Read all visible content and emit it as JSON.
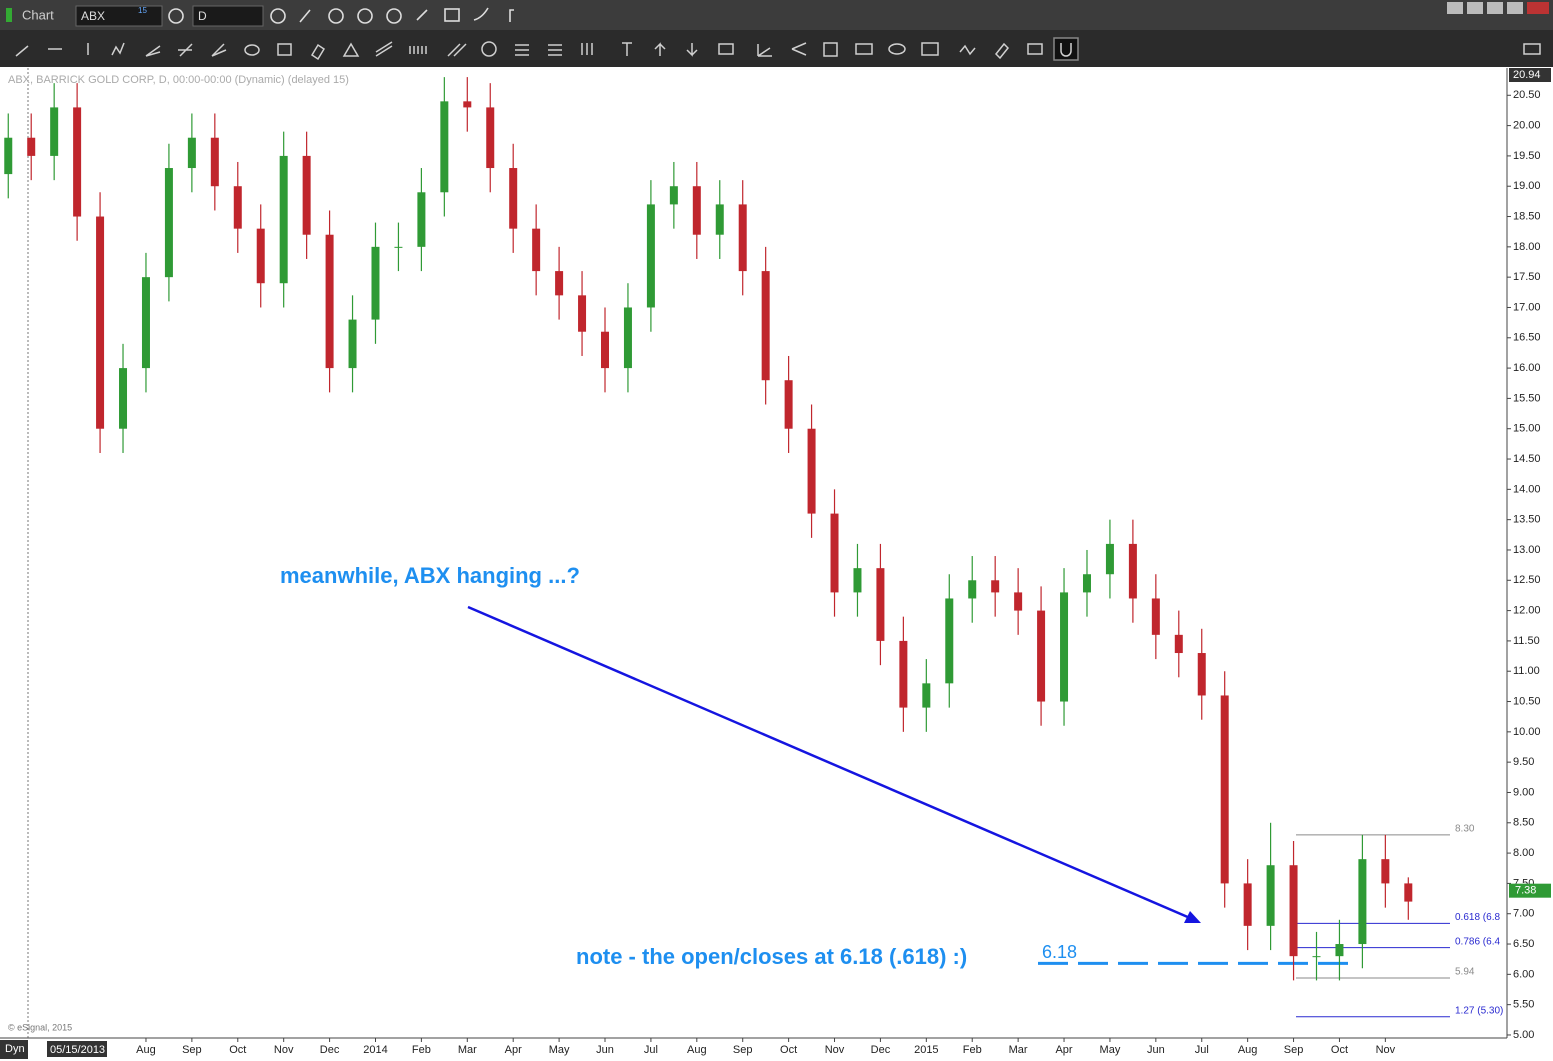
{
  "header": {
    "app_title": "Chart",
    "symbol": "ABX",
    "symbol_badge": "15",
    "interval": "D"
  },
  "chart_data": {
    "type": "candlestick",
    "legend_text": "ABX, BARRICK GOLD CORP, D, 00:00-00:00 (Dynamic) (delayed 15)",
    "x": [
      -2,
      -1.5,
      -1,
      -0.5,
      0,
      0.5,
      1,
      1.5,
      2,
      2.5,
      3,
      3.5,
      4,
      4.5,
      5,
      5.5,
      6,
      6.5,
      7,
      7.5,
      8,
      8.5,
      9,
      9.5,
      10,
      10.5,
      11,
      11.5,
      12,
      12.5,
      13,
      13.5,
      14,
      14.5,
      15,
      15.5,
      16,
      16.5,
      17,
      17.5,
      18,
      18.5,
      19,
      19.5,
      20,
      20.5,
      21,
      21.5,
      22,
      22.5,
      23,
      23.5,
      24,
      24.5,
      25,
      25.5,
      26,
      26.5,
      27,
      27.5,
      28,
      28.5
    ],
    "open": [
      19.2,
      19.8,
      19.5,
      20.3,
      18.5,
      15.0,
      16.0,
      17.5,
      19.3,
      19.8,
      19.0,
      18.3,
      17.4,
      19.5,
      18.2,
      16.0,
      16.8,
      18.0,
      18.0,
      18.9,
      20.4,
      20.3,
      19.3,
      18.3,
      17.6,
      17.2,
      16.6,
      16.0,
      17.0,
      18.7,
      19.0,
      18.2,
      18.7,
      17.6,
      15.8,
      15.0,
      13.6,
      12.3,
      12.7,
      11.5,
      10.4,
      10.8,
      12.2,
      12.5,
      12.3,
      12.0,
      10.5,
      12.3,
      12.6,
      13.1,
      12.2,
      11.6,
      11.3,
      10.6,
      7.5,
      6.8,
      7.8,
      6.3,
      6.3,
      6.5,
      7.9,
      7.5
    ],
    "high": [
      20.2,
      20.2,
      20.7,
      20.7,
      18.9,
      16.4,
      17.9,
      19.7,
      20.2,
      20.2,
      19.4,
      18.7,
      19.9,
      19.9,
      18.6,
      17.2,
      18.4,
      18.4,
      19.3,
      20.8,
      20.8,
      20.7,
      19.7,
      18.7,
      18.0,
      17.6,
      17.0,
      17.4,
      19.1,
      19.4,
      19.4,
      19.1,
      19.1,
      18.0,
      16.2,
      15.4,
      14.0,
      13.1,
      13.1,
      11.9,
      11.2,
      12.6,
      12.9,
      12.9,
      12.7,
      12.4,
      12.7,
      13.0,
      13.5,
      13.5,
      12.6,
      12.0,
      11.7,
      11.0,
      7.9,
      8.5,
      8.2,
      6.7,
      6.9,
      8.3,
      8.3,
      7.6
    ],
    "low": [
      18.8,
      19.1,
      19.1,
      18.1,
      14.6,
      14.6,
      15.6,
      17.1,
      18.9,
      18.6,
      17.9,
      17.0,
      17.0,
      17.8,
      15.6,
      15.6,
      16.4,
      17.6,
      17.6,
      18.5,
      19.9,
      18.9,
      17.9,
      17.2,
      16.8,
      16.2,
      15.6,
      15.6,
      16.6,
      18.3,
      17.8,
      17.8,
      17.2,
      15.4,
      14.6,
      13.2,
      11.9,
      11.9,
      11.1,
      10.0,
      10.0,
      10.4,
      11.8,
      11.9,
      11.6,
      10.1,
      10.1,
      11.9,
      12.2,
      11.8,
      11.2,
      10.9,
      10.2,
      7.1,
      6.4,
      6.4,
      5.9,
      5.9,
      5.9,
      6.1,
      7.1,
      6.9
    ],
    "close": [
      19.8,
      19.5,
      20.3,
      18.5,
      15.0,
      16.0,
      17.5,
      19.3,
      19.8,
      19.0,
      18.3,
      17.4,
      19.5,
      18.2,
      16.0,
      16.8,
      18.0,
      18.0,
      18.9,
      20.4,
      20.3,
      19.3,
      18.3,
      17.6,
      17.2,
      16.6,
      16.0,
      17.0,
      18.7,
      19.0,
      18.2,
      18.7,
      17.6,
      15.8,
      15.0,
      13.6,
      12.3,
      12.7,
      11.5,
      10.4,
      10.8,
      12.2,
      12.5,
      12.3,
      12.0,
      10.5,
      12.3,
      12.6,
      13.1,
      12.2,
      11.6,
      11.3,
      10.6,
      7.5,
      6.8,
      7.8,
      6.3,
      6.3,
      6.5,
      7.9,
      7.5,
      7.2
    ],
    "up_color": "#2f9a35",
    "down_color": "#c0262d",
    "xlim": [
      -2.18,
      30.65
    ],
    "xticks": [
      {
        "value": 1,
        "label": "Aug"
      },
      {
        "value": 2,
        "label": "Sep"
      },
      {
        "value": 3,
        "label": "Oct"
      },
      {
        "value": 4,
        "label": "Nov"
      },
      {
        "value": 5,
        "label": "Dec"
      },
      {
        "value": 6,
        "label": "2014"
      },
      {
        "value": 7,
        "label": "Feb"
      },
      {
        "value": 8,
        "label": "Mar"
      },
      {
        "value": 9,
        "label": "Apr"
      },
      {
        "value": 10,
        "label": "May"
      },
      {
        "value": 11,
        "label": "Jun"
      },
      {
        "value": 12,
        "label": "Jul"
      },
      {
        "value": 13,
        "label": "Aug"
      },
      {
        "value": 14,
        "label": "Sep"
      },
      {
        "value": 15,
        "label": "Oct"
      },
      {
        "value": 16,
        "label": "Nov"
      },
      {
        "value": 17,
        "label": "Dec"
      },
      {
        "value": 18,
        "label": "2015"
      },
      {
        "value": 19,
        "label": "Feb"
      },
      {
        "value": 20,
        "label": "Mar"
      },
      {
        "value": 21,
        "label": "Apr"
      },
      {
        "value": 22,
        "label": "May"
      },
      {
        "value": 23,
        "label": "Jun"
      },
      {
        "value": 24,
        "label": "Jul"
      },
      {
        "value": 25,
        "label": "Aug"
      },
      {
        "value": 26,
        "label": "Sep"
      },
      {
        "value": 27,
        "label": "Oct"
      },
      {
        "value": 28,
        "label": "Nov"
      }
    ],
    "ylim": [
      4.95,
      20.95
    ],
    "yticks": [
      {
        "value": 5,
        "label": "5.00"
      },
      {
        "value": 5.5,
        "label": "5.50"
      },
      {
        "value": 6,
        "label": "6.00"
      },
      {
        "value": 6.5,
        "label": "6.50"
      },
      {
        "value": 7,
        "label": "7.00"
      },
      {
        "value": 7.5,
        "label": "7.50"
      },
      {
        "value": 8,
        "label": "8.00"
      },
      {
        "value": 8.5,
        "label": "8.50"
      },
      {
        "value": 9,
        "label": "9.00"
      },
      {
        "value": 9.5,
        "label": "9.50"
      },
      {
        "value": 10,
        "label": "10.00"
      },
      {
        "value": 10.5,
        "label": "10.50"
      },
      {
        "value": 11,
        "label": "11.00"
      },
      {
        "value": 11.5,
        "label": "11.50"
      },
      {
        "value": 12,
        "label": "12.00"
      },
      {
        "value": 12.5,
        "label": "12.50"
      },
      {
        "value": 13,
        "label": "13.00"
      },
      {
        "value": 13.5,
        "label": "13.50"
      },
      {
        "value": 14,
        "label": "14.00"
      },
      {
        "value": 14.5,
        "label": "14.50"
      },
      {
        "value": 15,
        "label": "15.00"
      },
      {
        "value": 15.5,
        "label": "15.50"
      },
      {
        "value": 16,
        "label": "16.00"
      },
      {
        "value": 16.5,
        "label": "16.50"
      },
      {
        "value": 17,
        "label": "17.00"
      },
      {
        "value": 17.5,
        "label": "17.50"
      },
      {
        "value": 18,
        "label": "18.00"
      },
      {
        "value": 18.5,
        "label": "18.50"
      },
      {
        "value": 19,
        "label": "19.00"
      },
      {
        "value": 19.5,
        "label": "19.50"
      },
      {
        "value": 20,
        "label": "20.00"
      },
      {
        "value": 20.5,
        "label": "20.50"
      }
    ],
    "top_price": {
      "value": 20.94,
      "label": "20.94"
    },
    "last_price": {
      "value": 7.38,
      "label": "7.38"
    },
    "levels": [
      {
        "value": 8.3,
        "label": "8.30",
        "color": "#8a8a8a"
      },
      {
        "value": 6.84,
        "label": "0.618 (6.8",
        "color": "#2a2ad0"
      },
      {
        "value": 6.44,
        "label": "0.786 (6.4",
        "color": "#2a2ad0"
      },
      {
        "value": 5.94,
        "label": "5.94",
        "color": "#8a8a8a"
      },
      {
        "value": 5.3,
        "label": "1.27 (5.30)",
        "color": "#2a2ad0"
      }
    ],
    "support": {
      "value": 6.18,
      "label": "6.18",
      "color": "#1e8ff0"
    },
    "annotations": [
      "meanwhile, ABX hanging ...?",
      "note - the open/closes at 6.18 (.618)  :)"
    ],
    "start_date": "05/15/2013",
    "copyright": "© eSignal, 2015",
    "mode": "Dyn"
  }
}
